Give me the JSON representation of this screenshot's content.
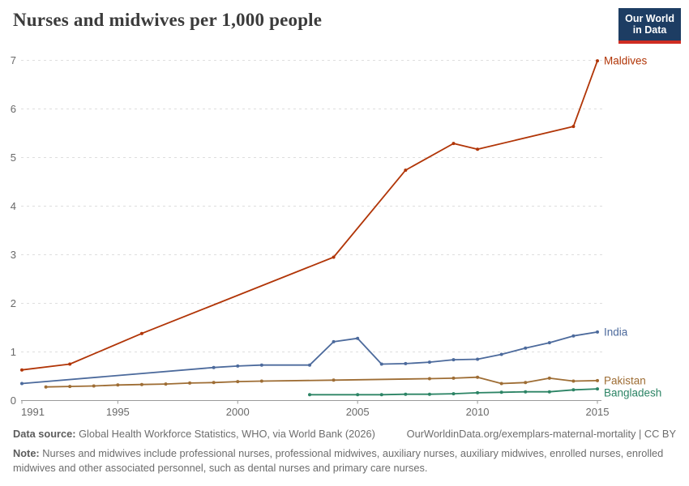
{
  "header": {
    "logo": {
      "line1": "Our World",
      "line2": "in Data"
    },
    "logo_bg": "#1d3d63",
    "logo_bar": "#cf2d23"
  },
  "chart_data": {
    "type": "line",
    "title": "Nurses and midwives per 1,000 people",
    "xlabel": "",
    "ylabel": "",
    "xlim": [
      1991,
      2015
    ],
    "ylim": [
      0,
      7
    ],
    "x_ticks": [
      1991,
      1995,
      2000,
      2005,
      2010,
      2015
    ],
    "y_ticks": [
      0,
      1,
      2,
      3,
      4,
      5,
      6,
      7
    ],
    "grid": true,
    "legend_position": "end-of-line-labels",
    "axis_color": "#9a9a9a",
    "grid_color": "#dedede",
    "tick_label_color": "#696969",
    "series": [
      {
        "name": "Maldives",
        "color": "#b13507",
        "points": [
          [
            1991,
            0.63
          ],
          [
            1993,
            0.75
          ],
          [
            1996,
            1.38
          ],
          [
            2004,
            2.95
          ],
          [
            2007,
            4.74
          ],
          [
            2009,
            5.29
          ],
          [
            2010,
            5.17
          ],
          [
            2014,
            5.64
          ],
          [
            2015,
            6.99
          ]
        ]
      },
      {
        "name": "India",
        "color": "#4c6a9c",
        "points": [
          [
            1991,
            0.35
          ],
          [
            1999,
            0.68
          ],
          [
            2000,
            0.71
          ],
          [
            2001,
            0.73
          ],
          [
            2003,
            0.73
          ],
          [
            2004,
            1.21
          ],
          [
            2005,
            1.28
          ],
          [
            2006,
            0.75
          ],
          [
            2007,
            0.76
          ],
          [
            2008,
            0.79
          ],
          [
            2009,
            0.84
          ],
          [
            2010,
            0.85
          ],
          [
            2011,
            0.95
          ],
          [
            2012,
            1.08
          ],
          [
            2013,
            1.19
          ],
          [
            2014,
            1.33
          ],
          [
            2015,
            1.41
          ]
        ]
      },
      {
        "name": "Pakistan",
        "color": "#9e6d34",
        "points": [
          [
            1992,
            0.28
          ],
          [
            1993,
            0.29
          ],
          [
            1994,
            0.3
          ],
          [
            1995,
            0.32
          ],
          [
            1996,
            0.33
          ],
          [
            1997,
            0.34
          ],
          [
            1998,
            0.36
          ],
          [
            1999,
            0.37
          ],
          [
            2000,
            0.39
          ],
          [
            2001,
            0.4
          ],
          [
            2004,
            0.42
          ],
          [
            2008,
            0.45
          ],
          [
            2009,
            0.46
          ],
          [
            2010,
            0.48
          ],
          [
            2011,
            0.35
          ],
          [
            2012,
            0.37
          ],
          [
            2013,
            0.46
          ],
          [
            2014,
            0.4
          ],
          [
            2015,
            0.41
          ]
        ]
      },
      {
        "name": "Bangladesh",
        "color": "#2c8465",
        "points": [
          [
            2003,
            0.12
          ],
          [
            2005,
            0.12
          ],
          [
            2006,
            0.12
          ],
          [
            2007,
            0.13
          ],
          [
            2008,
            0.13
          ],
          [
            2009,
            0.14
          ],
          [
            2010,
            0.16
          ],
          [
            2011,
            0.17
          ],
          [
            2012,
            0.18
          ],
          [
            2013,
            0.18
          ],
          [
            2014,
            0.22
          ],
          [
            2015,
            0.24
          ]
        ]
      }
    ]
  },
  "footer": {
    "datasource_label": "Data source:",
    "datasource_text": " Global Health Workforce Statistics, WHO, via World Bank (2026)",
    "link": "OurWorldinData.org/exemplars-maternal-mortality",
    "separator": " | ",
    "license": "CC BY",
    "note_label": "Note:",
    "note_text": " Nurses and midwives include professional nurses, professional midwives, auxiliary nurses, auxiliary midwives, enrolled nurses, enrolled midwives and other associated personnel, such as dental nurses and primary care nurses."
  }
}
